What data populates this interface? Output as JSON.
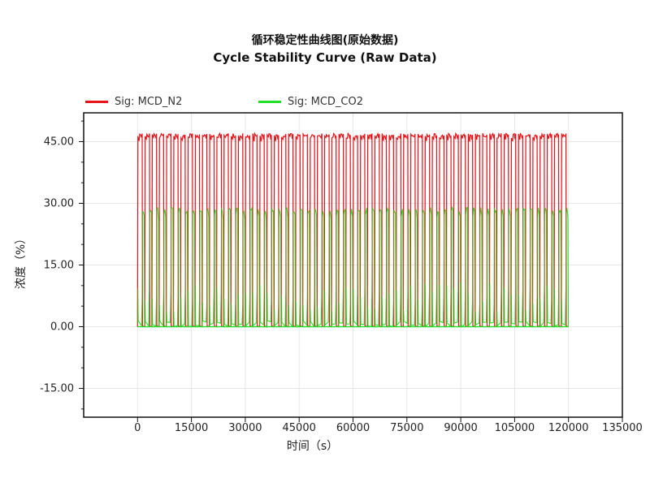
{
  "chart_data": {
    "type": "line",
    "title": "循环稳定性曲线图(原始数据)",
    "subtitle": "Cycle Stability Curve (Raw Data)",
    "xlabel": "时间（s）",
    "ylabel": "浓度（%）",
    "xlim": [
      -15000,
      135000
    ],
    "ylim": [
      -22,
      52
    ],
    "x_ticks": [
      0,
      15000,
      30000,
      45000,
      60000,
      75000,
      90000,
      105000,
      120000,
      135000
    ],
    "x_tick_labels": [
      "0",
      "15000",
      "30000",
      "45000",
      "60000",
      "75000",
      "90000",
      "105000",
      "120000",
      "135000"
    ],
    "y_ticks": [
      -15,
      0,
      15,
      30,
      45
    ],
    "y_tick_labels": [
      "-15.00",
      "0.00",
      "15.00",
      "30.00",
      "45.00"
    ],
    "grid": true,
    "legend_position": "top",
    "cycle_period_s": 2000,
    "x_start": 0,
    "x_end": 120000,
    "series": [
      {
        "name": "Sig: MCD_N2",
        "color": "#e8141a",
        "high": 47,
        "low": 0,
        "plateau": 45
      },
      {
        "name": "Sig: MCD_CO2",
        "color": "#22e02a",
        "high": 29,
        "low": 0,
        "spike": 9
      }
    ]
  }
}
